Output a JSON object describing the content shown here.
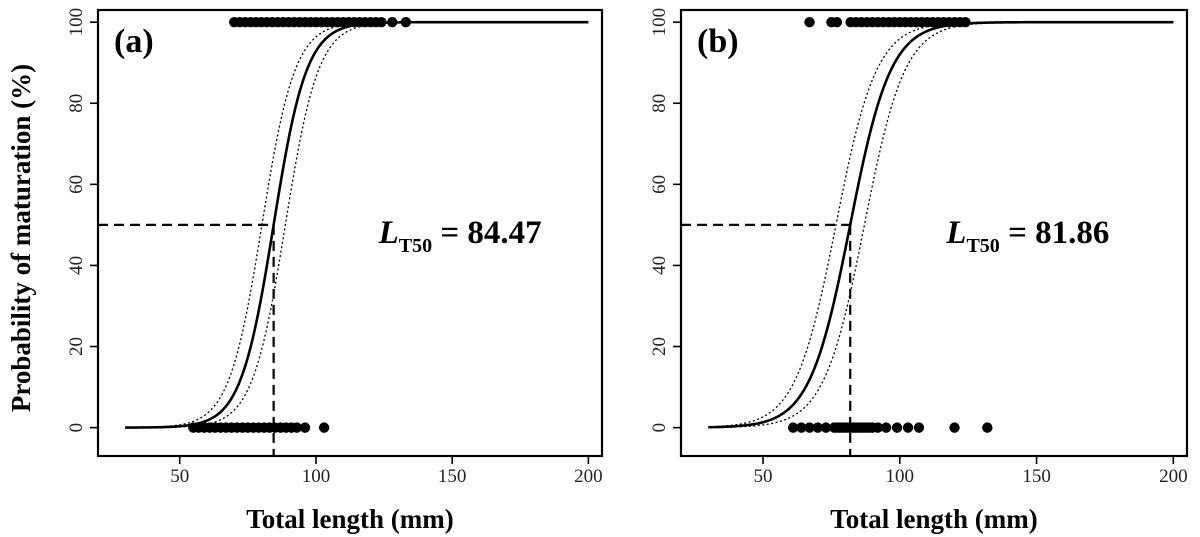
{
  "y_axis_title": "Probability of maturation (%)",
  "chart_data": [
    {
      "type": "scatter",
      "panel_label": "(a)",
      "xlabel": "Total length (mm)",
      "ylabel": "Probability of maturation (%)",
      "xlim": [
        20,
        205
      ],
      "ylim": [
        -7,
        103
      ],
      "xticks": [
        50,
        100,
        150,
        200
      ],
      "yticks": [
        0,
        20,
        40,
        60,
        80,
        100
      ],
      "grid": false,
      "annotation": {
        "symbol": "L",
        "subscript": "T50",
        "text": " = 84.47"
      },
      "L50": 84.47,
      "slope": 0.165,
      "ci_offset": 4.3,
      "curve_range": [
        30,
        200
      ],
      "mature_points_x": [
        70,
        72,
        74,
        76,
        78,
        80,
        82,
        84,
        86,
        88,
        90,
        92,
        94,
        96,
        98,
        100,
        102,
        104,
        106,
        108,
        110,
        112,
        114,
        116,
        118,
        120,
        122,
        124,
        128,
        133
      ],
      "immature_points_x": [
        55,
        57,
        59,
        61,
        63,
        65,
        67,
        69,
        71,
        73,
        75,
        77,
        79,
        81,
        83,
        85,
        87,
        89,
        91,
        93,
        96,
        103
      ]
    },
    {
      "type": "scatter",
      "panel_label": "(b)",
      "xlabel": "Total length (mm)",
      "ylabel": "",
      "xlim": [
        20,
        205
      ],
      "ylim": [
        -7,
        103
      ],
      "xticks": [
        50,
        100,
        150,
        200
      ],
      "yticks": [
        0,
        20,
        40,
        60,
        80,
        100
      ],
      "grid": false,
      "annotation": {
        "symbol": "L",
        "subscript": "T50",
        "text": " = 81.86"
      },
      "L50": 81.86,
      "slope": 0.135,
      "ci_offset": 5.2,
      "curve_range": [
        30,
        200
      ],
      "mature_points_x": [
        67,
        75,
        77,
        82,
        84,
        86,
        88,
        90,
        92,
        94,
        96,
        98,
        100,
        102,
        104,
        106,
        108,
        110,
        112,
        114,
        116,
        118,
        120,
        122,
        124
      ],
      "immature_points_x": [
        61,
        64,
        67,
        70,
        73,
        76,
        77,
        78,
        79,
        80,
        81,
        82,
        83,
        84,
        85,
        86,
        87,
        88,
        89,
        90,
        92,
        95,
        99,
        103,
        107,
        120,
        132
      ]
    }
  ]
}
